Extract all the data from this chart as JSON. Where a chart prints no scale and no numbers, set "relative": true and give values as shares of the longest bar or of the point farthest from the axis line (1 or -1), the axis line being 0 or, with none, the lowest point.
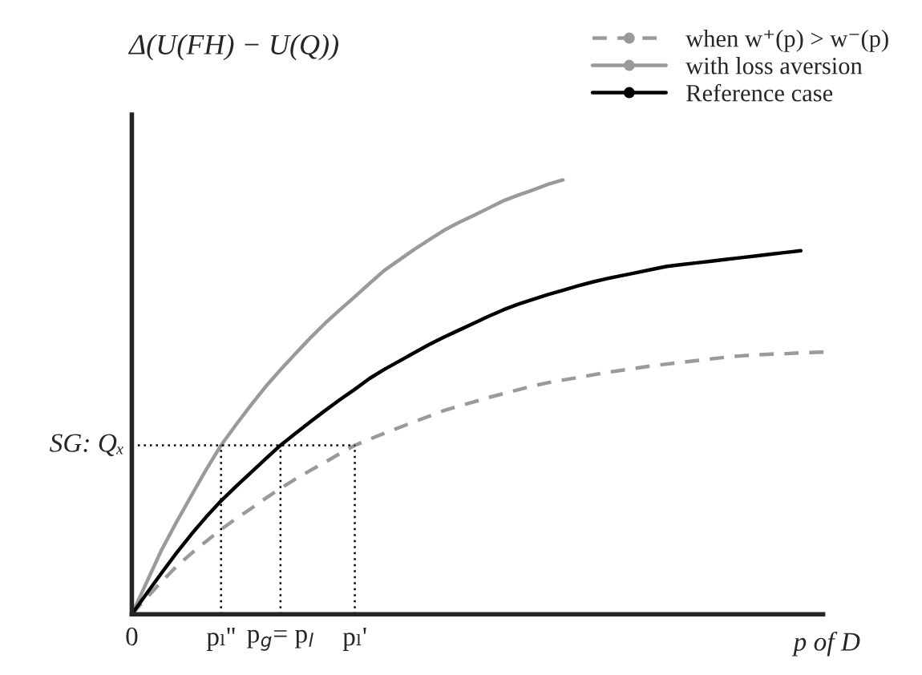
{
  "chart_data": {
    "type": "line",
    "relative": true,
    "ylabel": "Δ(U(FH) − U(Q))",
    "xlabel": "p of D",
    "annotations": [
      "0",
      {
        "text": "pₗ''",
        "y": 0.389
      },
      {
        "text": "p$_{g}$= p$_{l}$",
        "y": 0.389
      },
      {
        "text": "pₗ'",
        "y": 0.389
      }
    ],
    "categories": [
      null,
      null,
      null,
      null,
      null,
      null,
      null,
      null,
      null,
      null,
      null,
      null,
      null,
      null,
      null,
      null,
      null,
      null,
      null,
      null,
      null,
      null,
      null,
      null,
      null,
      null,
      null,
      null,
      null,
      null,
      null,
      null,
      null,
      null,
      null,
      null,
      null,
      null,
      null,
      null,
      null,
      null,
      null,
      null,
      null,
      null,
      null,
      null
    ],
    "legend": "top right",
    "marker": "none",
    "ref_lines": [
      {
        "axis": "y",
        "value": 0.389,
        "label": "SG: Qₓ",
        "line_style": "dotted",
        "color": "#000000"
      }
    ],
    "series": [
      {
        "name": "when w⁺(p) > w⁻(p)",
        "color": "#9a9a9a",
        "line_style": "dashed",
        "values": [
          0,
          0.038,
          0.075,
          0.11,
          0.14,
          0.168,
          0.195,
          0.22,
          0.243,
          0.267,
          0.29,
          0.311,
          0.331,
          0.35,
          0.37,
          0.389,
          0.403,
          0.417,
          0.43,
          0.443,
          0.456,
          0.469,
          0.479,
          0.489,
          0.499,
          0.508,
          0.517,
          0.526,
          0.533,
          0.539,
          0.545,
          0.551,
          0.557,
          0.562,
          0.567,
          0.572,
          0.576,
          0.58,
          0.584,
          0.588,
          0.592,
          0.595,
          0.597,
          0.599,
          0.6,
          0.602,
          0.603,
          0.604
        ]
      },
      {
        "name": "with loss aversion",
        "color": "#9a9a9a",
        "line_style": "solid",
        "values": [
          0,
          0.074,
          0.148,
          0.212,
          0.273,
          0.333,
          0.389,
          0.436,
          0.481,
          0.524,
          0.563,
          0.6,
          0.636,
          0.67,
          0.701,
          0.731,
          0.762,
          0.792,
          0.816,
          0.84,
          0.862,
          0.884,
          0.902,
          0.918,
          0.935,
          0.952,
          0.965,
          0.977,
          0.99,
          1.0,
          null,
          null,
          null,
          null,
          null,
          null,
          null,
          null,
          null,
          null,
          null,
          null,
          null,
          null,
          null,
          null,
          null,
          null
        ]
      },
      {
        "name": "Reference case",
        "color": "#000000",
        "line_style": "solid",
        "values": [
          0,
          0.048,
          0.095,
          0.141,
          0.184,
          0.224,
          0.261,
          0.294,
          0.326,
          0.358,
          0.389,
          0.416,
          0.443,
          0.469,
          0.494,
          0.518,
          0.543,
          0.564,
          0.583,
          0.602,
          0.621,
          0.638,
          0.654,
          0.67,
          0.686,
          0.701,
          0.714,
          0.725,
          0.736,
          0.746,
          0.756,
          0.765,
          0.773,
          0.78,
          0.787,
          0.794,
          0.801,
          0.805,
          0.809,
          0.813,
          0.817,
          0.821,
          0.825,
          0.829,
          0.833,
          0.837,
          null,
          null
        ]
      }
    ]
  }
}
